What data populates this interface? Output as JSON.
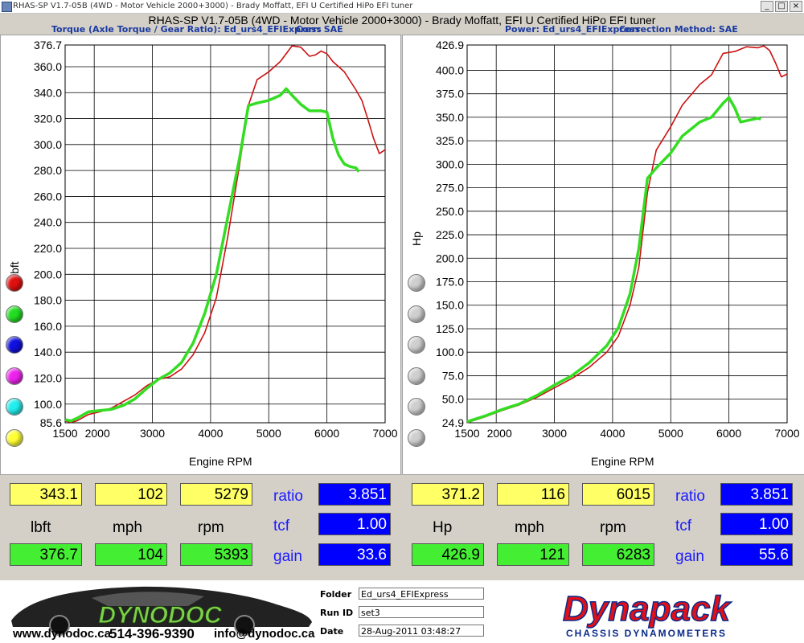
{
  "window": {
    "title": "RHAS-SP V1.7-05B   (4WD - Motor Vehicle 2000+3000) - Brady Moffatt, EFI U Certified HiPo EFI tuner",
    "min": "_",
    "max": "□",
    "close": "×"
  },
  "header": {
    "subtitle": "RHAS-SP V1.7-05B   (4WD - Motor Vehicle 2000+3000) - Brady Moffatt, EFI U Certified HiPo EFI tuner"
  },
  "panels": {
    "left": {
      "title": "Torque (Axle Torque / Gear Ratio): Ed_urs4_EFIExpress",
      "corr": "Corr: SAE"
    },
    "right": {
      "title": "Power: Ed_urs4_EFIExpress",
      "corr": "Correction Method: SAE"
    }
  },
  "chart_data": [
    {
      "type": "line",
      "xlabel": "Engine RPM",
      "ylabel": "lbft",
      "xlim": [
        1500,
        7000
      ],
      "ylim": [
        85.6,
        376.7
      ],
      "xticks": [
        "1500",
        "2000",
        "3000",
        "4000",
        "5000",
        "6000",
        "7000"
      ],
      "yticks": [
        "376.7",
        "360.0",
        "340.0",
        "320.0",
        "300.0",
        "280.0",
        "260.0",
        "240.0",
        "220.0",
        "200.0",
        "180.0",
        "160.0",
        "140.0",
        "120.0",
        "100.0",
        "85.6"
      ],
      "grid": true,
      "series": [
        {
          "color": "#cc1111",
          "points": [
            [
              1500,
              87
            ],
            [
              1600,
              86
            ],
            [
              1700,
              87
            ],
            [
              1900,
              92
            ],
            [
              2100,
              94
            ],
            [
              2300,
              97
            ],
            [
              2500,
              102
            ],
            [
              2700,
              107
            ],
            [
              2900,
              114
            ],
            [
              3100,
              119
            ],
            [
              3300,
              121
            ],
            [
              3500,
              127
            ],
            [
              3700,
              138
            ],
            [
              3900,
              155
            ],
            [
              4100,
              182
            ],
            [
              4300,
              230
            ],
            [
              4500,
              285
            ],
            [
              4650,
              330
            ],
            [
              4800,
              350
            ],
            [
              5000,
              356
            ],
            [
              5200,
              364
            ],
            [
              5400,
              376
            ],
            [
              5550,
              375
            ],
            [
              5700,
              368
            ],
            [
              5800,
              369
            ],
            [
              5900,
              372
            ],
            [
              6000,
              370
            ],
            [
              6100,
              364
            ],
            [
              6300,
              356
            ],
            [
              6500,
              342
            ],
            [
              6600,
              334
            ],
            [
              6700,
              320
            ],
            [
              6800,
              305
            ],
            [
              6900,
              293
            ],
            [
              7000,
              296
            ]
          ]
        },
        {
          "color": "#33dd22",
          "points": [
            [
              1500,
              88
            ],
            [
              1600,
              87
            ],
            [
              1700,
              89
            ],
            [
              1900,
              94
            ],
            [
              2100,
              95
            ],
            [
              2300,
              96
            ],
            [
              2500,
              99
            ],
            [
              2700,
              104
            ],
            [
              2900,
              112
            ],
            [
              3100,
              119
            ],
            [
              3300,
              124
            ],
            [
              3500,
              132
            ],
            [
              3700,
              147
            ],
            [
              3900,
              170
            ],
            [
              4100,
              200
            ],
            [
              4300,
              245
            ],
            [
              4500,
              290
            ],
            [
              4650,
              330
            ],
            [
              4800,
              332
            ],
            [
              5000,
              334
            ],
            [
              5200,
              338
            ],
            [
              5300,
              343
            ],
            [
              5400,
              338
            ],
            [
              5550,
              331
            ],
            [
              5700,
              326
            ],
            [
              5900,
              326
            ],
            [
              6000,
              325
            ],
            [
              6100,
              305
            ],
            [
              6200,
              292
            ],
            [
              6300,
              285
            ],
            [
              6400,
              283
            ],
            [
              6500,
              282
            ],
            [
              6550,
              279
            ]
          ]
        }
      ]
    },
    {
      "type": "line",
      "xlabel": "Engine RPM",
      "ylabel": "Hp",
      "xlim": [
        1500,
        7000
      ],
      "ylim": [
        24.9,
        426.9
      ],
      "xticks": [
        "1500",
        "2000",
        "3000",
        "4000",
        "5000",
        "6000",
        "7000"
      ],
      "yticks": [
        "426.9",
        "400.0",
        "375.0",
        "350.0",
        "325.0",
        "300.0",
        "275.0",
        "250.0",
        "225.0",
        "200.0",
        "175.0",
        "150.0",
        "125.0",
        "100.0",
        "75.0",
        "50.0",
        "24.9"
      ],
      "grid": true,
      "series": [
        {
          "color": "#cc1111",
          "points": [
            [
              1500,
              25
            ],
            [
              1800,
              31
            ],
            [
              2100,
              38
            ],
            [
              2400,
              44
            ],
            [
              2700,
              52
            ],
            [
              3000,
              62
            ],
            [
              3300,
              72
            ],
            [
              3600,
              84
            ],
            [
              3900,
              100
            ],
            [
              4100,
              117
            ],
            [
              4300,
              150
            ],
            [
              4450,
              190
            ],
            [
              4600,
              270
            ],
            [
              4750,
              315
            ],
            [
              5000,
              340
            ],
            [
              5200,
              363
            ],
            [
              5500,
              385
            ],
            [
              5700,
              395
            ],
            [
              5900,
              418
            ],
            [
              6100,
              420
            ],
            [
              6300,
              425
            ],
            [
              6500,
              424
            ],
            [
              6600,
              426
            ],
            [
              6700,
              421
            ],
            [
              6800,
              408
            ],
            [
              6900,
              393
            ],
            [
              7000,
              396
            ]
          ]
        },
        {
          "color": "#33dd22",
          "points": [
            [
              1500,
              26
            ],
            [
              1800,
              32
            ],
            [
              2100,
              39
            ],
            [
              2400,
              45
            ],
            [
              2700,
              54
            ],
            [
              3000,
              65
            ],
            [
              3300,
              75
            ],
            [
              3600,
              89
            ],
            [
              3900,
              107
            ],
            [
              4100,
              126
            ],
            [
              4300,
              162
            ],
            [
              4450,
              210
            ],
            [
              4600,
              285
            ],
            [
              4750,
              296
            ],
            [
              5000,
              312
            ],
            [
              5200,
              330
            ],
            [
              5500,
              345
            ],
            [
              5700,
              350
            ],
            [
              5900,
              365
            ],
            [
              6000,
              371
            ],
            [
              6100,
              360
            ],
            [
              6200,
              345
            ],
            [
              6350,
              347
            ],
            [
              6500,
              349
            ],
            [
              6550,
              348
            ]
          ]
        }
      ]
    }
  ],
  "legend_dots": [
    "#e01010",
    "#22dd22",
    "#1010e0",
    "#ee22ee",
    "#22eeee",
    "#ffff33"
  ],
  "legend_dots_right": [
    "#cfcfcf",
    "#cfcfcf",
    "#cfcfcf",
    "#cfcfcf",
    "#cfcfcf",
    "#cfcfcf"
  ],
  "stats": {
    "left": {
      "row1": [
        "343.1",
        "102",
        "5279"
      ],
      "unit_labels": [
        "lbft",
        "mph",
        "rpm"
      ],
      "row2": [
        "376.7",
        "104",
        "5393"
      ],
      "ratio_label": "ratio",
      "ratio": "3.851",
      "tcf_label": "tcf",
      "tcf": "1.00",
      "gain_label": "gain",
      "gain": "33.6"
    },
    "right": {
      "row1": [
        "371.2",
        "116",
        "6015"
      ],
      "unit_labels": [
        "Hp",
        "mph",
        "rpm"
      ],
      "row2": [
        "426.9",
        "121",
        "6283"
      ],
      "ratio_label": "ratio",
      "ratio": "3.851",
      "tcf_label": "tcf",
      "tcf": "1.00",
      "gain_label": "gain",
      "gain": "55.6"
    }
  },
  "footer": {
    "logo_text": "DYNODOC",
    "website": "www.dynodoc.ca",
    "phone": "514-396-9390",
    "email": "info@dynodoc.ca",
    "folder_label": "Folder",
    "folder": "Ed_urs4_EFIExpress",
    "runid_label": "Run ID",
    "runid": "set3",
    "date_label": "Date",
    "date": "28-Aug-2011  03:48:27",
    "brand": "Dynapack",
    "brand_sub": "CHASSIS    DYNAMOMETERS"
  }
}
